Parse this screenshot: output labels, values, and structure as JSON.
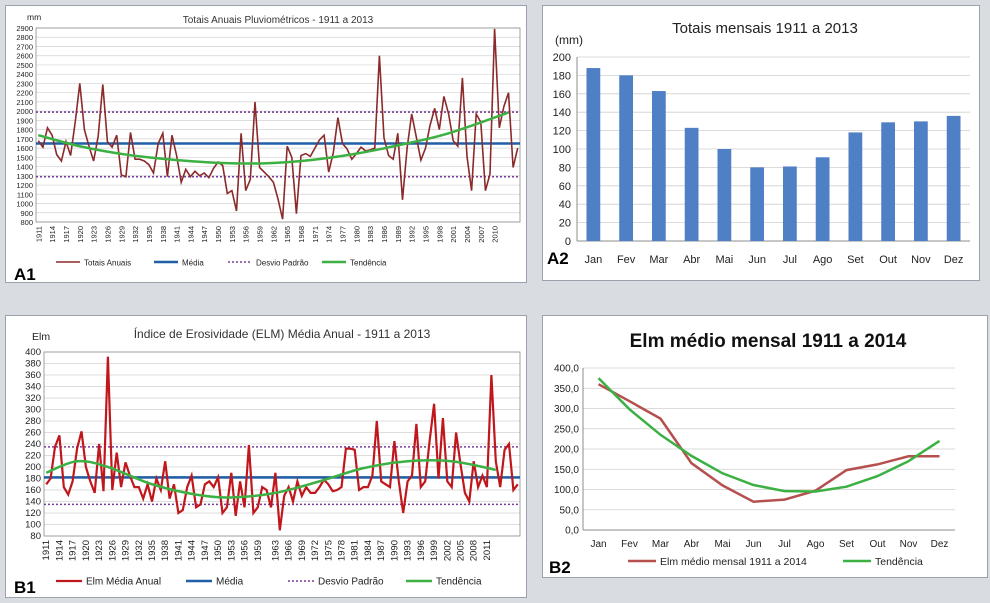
{
  "panels": {
    "a1_label": "A1",
    "a2_label": "A2",
    "b1_label": "B1",
    "b2_label": "B2"
  },
  "chart_data": [
    {
      "id": "A1",
      "type": "line",
      "title": "Totais  Anuais Pluviométricos - 1911 a 2013",
      "ylabel": "mm",
      "xlabel": "",
      "ylim": [
        800,
        2900
      ],
      "yticks": [
        800,
        900,
        1000,
        1100,
        1200,
        1300,
        1400,
        1500,
        1600,
        1700,
        1800,
        1900,
        2000,
        2100,
        2200,
        2300,
        2400,
        2500,
        2600,
        2700,
        2800,
        2900
      ],
      "xticks": [
        "1911",
        "1914",
        "1917",
        "1920",
        "1923",
        "1926",
        "1929",
        "1932",
        "1935",
        "1938",
        "1941",
        "1944",
        "1947",
        "1950",
        "1953",
        "1956",
        "1959",
        "1962",
        "1965",
        "1968",
        "1971",
        "1974",
        "1977",
        "1980",
        "1983",
        "1986",
        "1989",
        "1992",
        "1995",
        "1998",
        "2001",
        "2004",
        "2007",
        "2010"
      ],
      "grid": true,
      "legend": "bottom",
      "legend_labels": [
        "Totais Anuais",
        "Média",
        "Desvio Padrão",
        "Tendência"
      ],
      "colors": {
        "series": "#8b2a2a",
        "mean": "#1f5fa8",
        "sd": "#7a3c9a",
        "trend": "#3cb043"
      },
      "x_start": 1911,
      "series": [
        {
          "name": "Totais Anuais",
          "values": [
            1680,
            1610,
            1820,
            1740,
            1530,
            1460,
            1670,
            1520,
            1880,
            2300,
            1800,
            1620,
            1460,
            1730,
            2290,
            1670,
            1610,
            1740,
            1310,
            1290,
            1770,
            1480,
            1480,
            1460,
            1420,
            1330,
            1650,
            1760,
            1290,
            1740,
            1520,
            1230,
            1370,
            1290,
            1350,
            1300,
            1330,
            1280,
            1380,
            1450,
            1410,
            1110,
            1140,
            920,
            1760,
            1140,
            1260,
            2100,
            1390,
            1340,
            1290,
            1230,
            1050,
            830,
            1620,
            1500,
            890,
            1520,
            1540,
            1510,
            1600,
            1690,
            1740,
            1340,
            1550,
            1930,
            1650,
            1590,
            1480,
            1540,
            1610,
            1570,
            1580,
            1600,
            2600,
            1710,
            1520,
            1480,
            1760,
            1040,
            1600,
            1970,
            1720,
            1470,
            1600,
            1850,
            2030,
            1800,
            2160,
            1970,
            1680,
            1620,
            2360,
            1510,
            1140,
            1970,
            1880,
            1140,
            1320,
            2890,
            1820,
            2050,
            2200,
            1390,
            1600
          ]
        }
      ],
      "mean": 1650,
      "sd_lines": [
        1290,
        1990
      ],
      "trend": [
        [
          1911,
          1740
        ],
        [
          1920,
          1620
        ],
        [
          1930,
          1530
        ],
        [
          1940,
          1475
        ],
        [
          1950,
          1440
        ],
        [
          1960,
          1435
        ],
        [
          1970,
          1470
        ],
        [
          1980,
          1540
        ],
        [
          1990,
          1640
        ],
        [
          2000,
          1760
        ],
        [
          2013,
          1985
        ]
      ]
    },
    {
      "id": "A2",
      "type": "bar",
      "title": "Totais mensais 1911 a 2013",
      "ylabel": "(mm)",
      "ylim": [
        0,
        200
      ],
      "yticks": [
        0,
        20,
        40,
        60,
        80,
        100,
        120,
        140,
        160,
        180,
        200
      ],
      "categories": [
        "Jan",
        "Fev",
        "Mar",
        "Abr",
        "Mai",
        "Jun",
        "Jul",
        "Ago",
        "Set",
        "Out",
        "Nov",
        "Dez"
      ],
      "values": [
        188,
        180,
        163,
        123,
        100,
        80,
        81,
        91,
        118,
        129,
        130,
        136
      ],
      "color": "#4f7fc4",
      "grid": true
    },
    {
      "id": "B1",
      "type": "line",
      "title": "Índice de Erosividade (ELM) Média Anual - 1911 a 2013",
      "ylabel": "Elm",
      "ylim": [
        80,
        400
      ],
      "yticks": [
        80,
        100,
        120,
        140,
        160,
        180,
        200,
        220,
        240,
        260,
        280,
        300,
        320,
        340,
        360,
        380,
        400
      ],
      "xticks": [
        "1911",
        "1914",
        "1917",
        "1920",
        "1923",
        "1926",
        "1929",
        "1932",
        "1935",
        "1938",
        "1941",
        "1944",
        "1947",
        "1950",
        "1953",
        "1956",
        "1959",
        "1963",
        "1966",
        "1969",
        "1972",
        "1975",
        "1978",
        "1981",
        "1984",
        "1987",
        "1990",
        "1993",
        "1996",
        "1999",
        "2002",
        "2005",
        "2008",
        "2011"
      ],
      "grid": true,
      "legend": "bottom",
      "legend_labels": [
        "Elm Média Anual",
        "Média",
        "Desvio Padrão",
        "Tendência"
      ],
      "colors": {
        "series": "#c0171c",
        "mean": "#1f5fa8",
        "sd": "#7a3c9a",
        "trend": "#3cb043"
      },
      "x_start": 1911,
      "series": [
        {
          "name": "Elm Média Anual",
          "values": [
            170,
            180,
            235,
            255,
            165,
            152,
            175,
            232,
            262,
            200,
            175,
            155,
            240,
            158,
            392,
            160,
            225,
            165,
            208,
            185,
            165,
            165,
            145,
            170,
            140,
            180,
            160,
            210,
            145,
            170,
            120,
            125,
            165,
            185,
            130,
            135,
            170,
            175,
            165,
            182,
            120,
            130,
            190,
            115,
            175,
            130,
            238,
            120,
            130,
            165,
            160,
            130,
            190,
            90,
            150,
            165,
            140,
            175,
            150,
            165,
            155,
            155,
            165,
            178,
            170,
            158,
            160,
            165,
            232,
            232,
            230,
            160,
            165,
            165,
            185,
            280,
            175,
            170,
            165,
            245,
            175,
            120,
            175,
            185,
            275,
            165,
            175,
            245,
            310,
            180,
            285,
            175,
            165,
            260,
            205,
            155,
            140,
            210,
            165,
            185,
            165,
            360,
            210,
            165,
            230,
            240,
            160,
            170
          ]
        }
      ],
      "mean": 182,
      "sd_lines": [
        135,
        235
      ],
      "trend": [
        [
          1911,
          190
        ],
        [
          1918,
          210
        ],
        [
          1925,
          200
        ],
        [
          1935,
          170
        ],
        [
          1945,
          152
        ],
        [
          1953,
          147
        ],
        [
          1963,
          155
        ],
        [
          1973,
          175
        ],
        [
          1983,
          198
        ],
        [
          1993,
          210
        ],
        [
          2003,
          210
        ],
        [
          2013,
          195
        ]
      ]
    },
    {
      "id": "B2",
      "type": "line",
      "title": "Elm médio mensal 1911 a 2014",
      "ylim": [
        0,
        400
      ],
      "yticks": [
        "0,0",
        "50,0",
        "100,0",
        "150,0",
        "200,0",
        "250,0",
        "300,0",
        "350,0",
        "400,0"
      ],
      "categories": [
        "Jan",
        "Fev",
        "Mar",
        "Abr",
        "Mai",
        "Jun",
        "Jul",
        "Ago",
        "Set",
        "Out",
        "Nov",
        "Dez"
      ],
      "grid": true,
      "legend": "bottom",
      "legend_labels": [
        "Elm médio mensal 1911 a 2014",
        "Tendência"
      ],
      "colors": {
        "series": "#b5504f",
        "trend": "#3cb043"
      },
      "series": [
        {
          "name": "Elm médio mensal 1911 a 2014",
          "values": [
            360,
            318,
            275,
            165,
            110,
            70,
            75,
            97,
            148,
            162,
            182,
            182
          ]
        }
      ],
      "trend": [
        375,
        298,
        235,
        183,
        140,
        111,
        96,
        95,
        107,
        133,
        170,
        220
      ]
    }
  ]
}
